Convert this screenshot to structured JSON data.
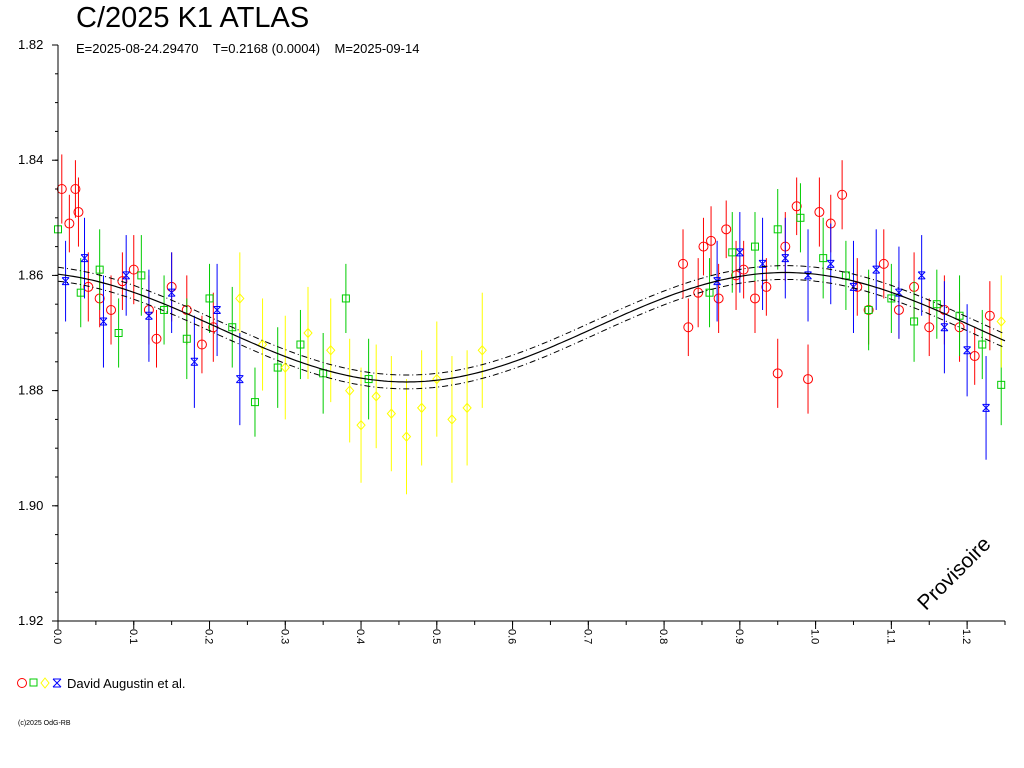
{
  "chart_data": {
    "type": "scatter",
    "title": "C/2025 K1 ATLAS",
    "subtitle": "E=2025-08-24.29470    T=0.2168 (0.0004)    M=2025-09-14",
    "xlim": [
      0.0,
      1.25
    ],
    "ylim": [
      1.82,
      1.92
    ],
    "y_inverted": true,
    "y_ticks": [
      "1.82",
      "1.84",
      "1.86",
      "1.88",
      "1.90",
      "1.92"
    ],
    "x_ticks": [
      "0.0",
      "0.1",
      "0.2",
      "0.3",
      "0.4",
      "0.5",
      "0.6",
      "0.7",
      "0.8",
      "0.9",
      "1.0",
      "1.1",
      "1.2"
    ],
    "grid": false,
    "model_curve": {
      "mean": 1.869,
      "amplitude": 0.0095,
      "band": 0.0012,
      "x_peak": 0.96
    },
    "series": [
      {
        "marker": "circle",
        "color": "#ff0000",
        "points": [
          [
            0.005,
            1.845,
            0.006
          ],
          [
            0.015,
            1.851,
            0.005
          ],
          [
            0.023,
            1.845,
            0.005
          ],
          [
            0.027,
            1.849,
            0.006
          ],
          [
            0.04,
            1.862,
            0.006
          ],
          [
            0.055,
            1.864,
            0.005
          ],
          [
            0.07,
            1.866,
            0.006
          ],
          [
            0.085,
            1.861,
            0.005
          ],
          [
            0.1,
            1.859,
            0.006
          ],
          [
            0.12,
            1.866,
            0.006
          ],
          [
            0.13,
            1.871,
            0.005
          ],
          [
            0.15,
            1.862,
            0.006
          ],
          [
            0.17,
            1.866,
            0.006
          ],
          [
            0.19,
            1.872,
            0.005
          ],
          [
            0.205,
            1.869,
            0.006
          ],
          [
            0.825,
            1.858,
            0.006
          ],
          [
            0.832,
            1.869,
            0.005
          ],
          [
            0.845,
            1.863,
            0.006
          ],
          [
            0.852,
            1.855,
            0.005
          ],
          [
            0.862,
            1.854,
            0.006
          ],
          [
            0.872,
            1.864,
            0.006
          ],
          [
            0.882,
            1.852,
            0.005
          ],
          [
            0.895,
            1.86,
            0.006
          ],
          [
            0.905,
            1.859,
            0.005
          ],
          [
            0.92,
            1.864,
            0.006
          ],
          [
            0.935,
            1.862,
            0.005
          ],
          [
            0.95,
            1.877,
            0.006
          ],
          [
            0.96,
            1.855,
            0.006
          ],
          [
            0.975,
            1.848,
            0.005
          ],
          [
            0.99,
            1.878,
            0.006
          ],
          [
            1.005,
            1.849,
            0.006
          ],
          [
            1.02,
            1.851,
            0.005
          ],
          [
            1.035,
            1.846,
            0.006
          ],
          [
            1.055,
            1.862,
            0.005
          ],
          [
            1.07,
            1.866,
            0.006
          ],
          [
            1.09,
            1.858,
            0.006
          ],
          [
            1.11,
            1.866,
            0.005
          ],
          [
            1.13,
            1.862,
            0.006
          ],
          [
            1.15,
            1.869,
            0.005
          ],
          [
            1.17,
            1.866,
            0.006
          ],
          [
            1.19,
            1.869,
            0.006
          ],
          [
            1.21,
            1.874,
            0.005
          ],
          [
            1.23,
            1.867,
            0.006
          ]
        ]
      },
      {
        "marker": "square",
        "color": "#00cc00",
        "points": [
          [
            0.0,
            1.852,
            0.007
          ],
          [
            0.03,
            1.863,
            0.006
          ],
          [
            0.055,
            1.859,
            0.007
          ],
          [
            0.08,
            1.87,
            0.006
          ],
          [
            0.11,
            1.86,
            0.007
          ],
          [
            0.14,
            1.866,
            0.006
          ],
          [
            0.17,
            1.871,
            0.007
          ],
          [
            0.2,
            1.864,
            0.006
          ],
          [
            0.23,
            1.869,
            0.007
          ],
          [
            0.26,
            1.882,
            0.006
          ],
          [
            0.29,
            1.876,
            0.007
          ],
          [
            0.32,
            1.872,
            0.006
          ],
          [
            0.35,
            1.877,
            0.007
          ],
          [
            0.38,
            1.864,
            0.006
          ],
          [
            0.41,
            1.878,
            0.007
          ],
          [
            0.86,
            1.863,
            0.006
          ],
          [
            0.89,
            1.856,
            0.007
          ],
          [
            0.92,
            1.855,
            0.006
          ],
          [
            0.95,
            1.852,
            0.007
          ],
          [
            0.98,
            1.85,
            0.006
          ],
          [
            1.01,
            1.857,
            0.007
          ],
          [
            1.04,
            1.86,
            0.006
          ],
          [
            1.07,
            1.866,
            0.007
          ],
          [
            1.1,
            1.864,
            0.006
          ],
          [
            1.13,
            1.868,
            0.007
          ],
          [
            1.16,
            1.865,
            0.006
          ],
          [
            1.19,
            1.867,
            0.007
          ],
          [
            1.22,
            1.872,
            0.006
          ],
          [
            1.245,
            1.879,
            0.007
          ]
        ]
      },
      {
        "marker": "diamond",
        "color": "#ffff00",
        "points": [
          [
            0.24,
            1.864,
            0.008
          ],
          [
            0.27,
            1.872,
            0.008
          ],
          [
            0.3,
            1.876,
            0.009
          ],
          [
            0.33,
            1.87,
            0.008
          ],
          [
            0.36,
            1.873,
            0.009
          ],
          [
            0.385,
            1.88,
            0.009
          ],
          [
            0.4,
            1.886,
            0.01
          ],
          [
            0.42,
            1.881,
            0.009
          ],
          [
            0.44,
            1.884,
            0.01
          ],
          [
            0.46,
            1.888,
            0.01
          ],
          [
            0.48,
            1.883,
            0.01
          ],
          [
            0.5,
            1.878,
            0.01
          ],
          [
            0.52,
            1.885,
            0.011
          ],
          [
            0.54,
            1.883,
            0.01
          ],
          [
            0.56,
            1.873,
            0.01
          ],
          [
            1.245,
            1.868,
            0.008
          ]
        ]
      },
      {
        "marker": "star",
        "color": "#0000ff",
        "points": [
          [
            0.01,
            1.861,
            0.007
          ],
          [
            0.035,
            1.857,
            0.007
          ],
          [
            0.06,
            1.868,
            0.008
          ],
          [
            0.09,
            1.86,
            0.007
          ],
          [
            0.12,
            1.867,
            0.008
          ],
          [
            0.15,
            1.863,
            0.007
          ],
          [
            0.18,
            1.875,
            0.008
          ],
          [
            0.21,
            1.866,
            0.008
          ],
          [
            0.24,
            1.878,
            0.008
          ],
          [
            0.87,
            1.861,
            0.007
          ],
          [
            0.9,
            1.856,
            0.007
          ],
          [
            0.93,
            1.858,
            0.008
          ],
          [
            0.96,
            1.857,
            0.007
          ],
          [
            0.99,
            1.86,
            0.008
          ],
          [
            1.02,
            1.858,
            0.007
          ],
          [
            1.05,
            1.862,
            0.008
          ],
          [
            1.08,
            1.859,
            0.007
          ],
          [
            1.11,
            1.863,
            0.008
          ],
          [
            1.14,
            1.86,
            0.007
          ],
          [
            1.17,
            1.869,
            0.008
          ],
          [
            1.2,
            1.873,
            0.008
          ],
          [
            1.225,
            1.883,
            0.009
          ]
        ]
      }
    ]
  },
  "legend": {
    "label": "David Augustin et al."
  },
  "footer": {
    "copyright": "(c)2025 OdG-RB"
  },
  "watermark": {
    "text": "Provisoire"
  }
}
